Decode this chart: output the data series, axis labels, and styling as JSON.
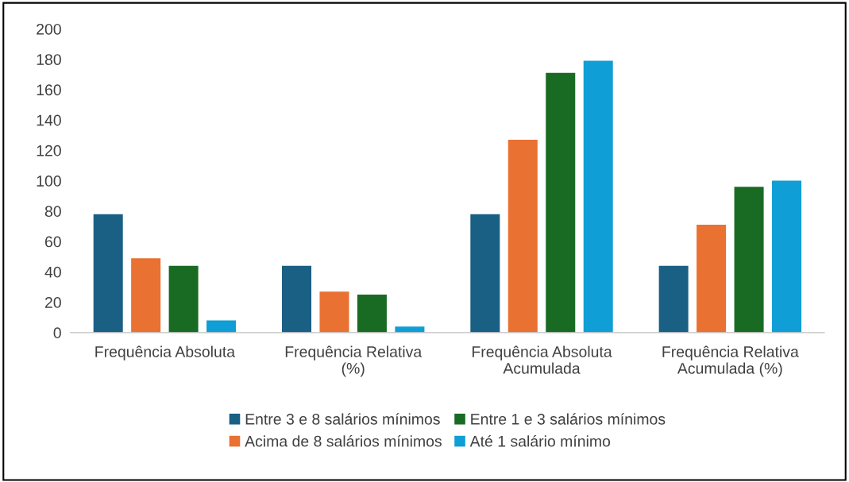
{
  "chart_data": {
    "type": "bar",
    "categories": [
      "Frequência Absoluta",
      "Frequência Relativa\n(%)",
      "Frequência Absoluta\nAcumulada",
      "Frequência Relativa\nAcumulada (%)"
    ],
    "series": [
      {
        "name": "Entre 3 e 8 salários mínimos",
        "color": "#1a5f84",
        "values": [
          78,
          44,
          78,
          44
        ]
      },
      {
        "name": "Acima de 8 salários mínimos",
        "color": "#e97132",
        "values": [
          49,
          27,
          127,
          71
        ]
      },
      {
        "name": "Entre 1 e 3 salários mínimos",
        "color": "#196b24",
        "values": [
          44,
          25,
          171,
          96
        ]
      },
      {
        "name": "Até 1 salário mínimo",
        "color": "#0f9ed5",
        "values": [
          8,
          4,
          179,
          100
        ]
      }
    ],
    "ylim": [
      0,
      200
    ],
    "yticks": [
      0,
      20,
      40,
      60,
      80,
      100,
      120,
      140,
      160,
      180,
      200
    ],
    "grid": false,
    "legend": "bottom"
  }
}
